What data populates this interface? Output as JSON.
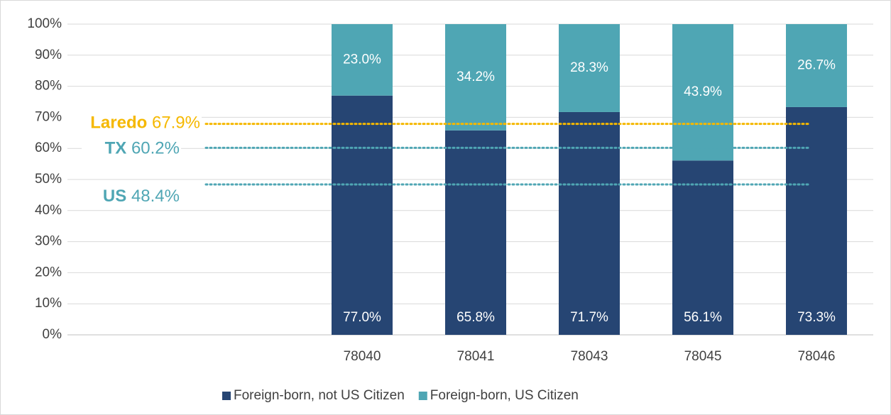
{
  "chart_data": {
    "type": "stacked_bar",
    "categories": [
      null,
      null,
      "78040",
      "78041",
      "78043",
      "78045",
      "78046"
    ],
    "series": [
      {
        "name": "Foreign-born, not US Citizen",
        "color": "#264573",
        "values": [
          null,
          null,
          77.0,
          65.8,
          71.7,
          56.1,
          73.3
        ],
        "value_labels": [
          null,
          null,
          "77.0%",
          "65.8%",
          "71.7%",
          "56.1%",
          "73.3%"
        ]
      },
      {
        "name": "Foreign-born, US Citizen",
        "color": "#4fa6b4",
        "values": [
          null,
          null,
          23.0,
          34.2,
          28.3,
          43.9,
          26.7
        ],
        "value_labels": [
          null,
          null,
          "23.0%",
          "34.2%",
          "28.3%",
          "43.9%",
          "26.7%"
        ]
      }
    ],
    "reference_lines": [
      {
        "name": "Laredo",
        "value": 67.9,
        "value_label": "67.9%",
        "color": "#f5b800"
      },
      {
        "name": "TX",
        "value": 60.2,
        "value_label": "60.2%",
        "color": "#4fa6b4"
      },
      {
        "name": "US",
        "value": 48.4,
        "value_label": "48.4%",
        "color": "#4fa6b4"
      }
    ],
    "ylim": [
      0,
      100
    ],
    "yticks": [
      {
        "value": 0,
        "label": "0%"
      },
      {
        "value": 10,
        "label": "10%"
      },
      {
        "value": 20,
        "label": "20%"
      },
      {
        "value": 30,
        "label": "30%"
      },
      {
        "value": 40,
        "label": "40%"
      },
      {
        "value": 50,
        "label": "50%"
      },
      {
        "value": 60,
        "label": "60%"
      },
      {
        "value": 70,
        "label": "70%"
      },
      {
        "value": 80,
        "label": "80%"
      },
      {
        "value": 90,
        "label": "90%"
      },
      {
        "value": 100,
        "label": "100%"
      }
    ],
    "grid": true,
    "legend": "bottom"
  }
}
